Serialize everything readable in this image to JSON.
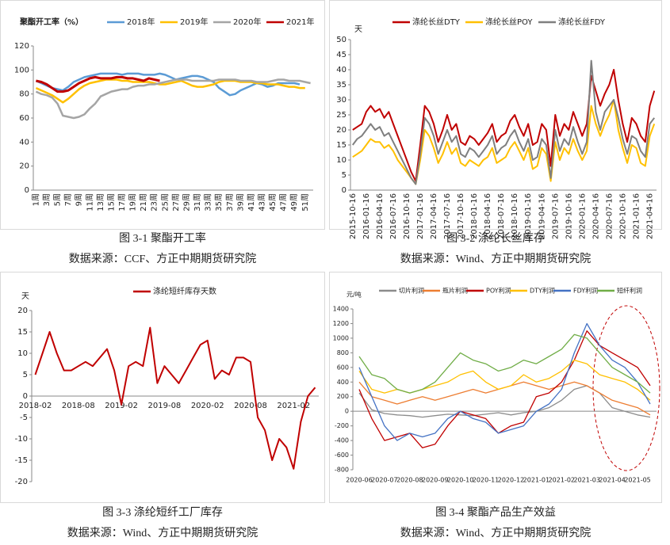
{
  "chart_data": [
    {
      "type": "line",
      "title": "聚酯开工率（%）",
      "caption": "图 3-1  聚酯开工率",
      "source": "数据来源：CCF、方正中期期货研究院",
      "categories": [
        "1周",
        null,
        "3周",
        null,
        "5周",
        null,
        "7周",
        null,
        "9周",
        null,
        "11周",
        null,
        "13周",
        null,
        "15周",
        null,
        "17周",
        null,
        "19周",
        null,
        "21周",
        null,
        "23周",
        null,
        "25周",
        null,
        "27周",
        null,
        "29周",
        null,
        "31周",
        null,
        "33周",
        null,
        "35周",
        null,
        "37周",
        null,
        "39周",
        null,
        "41周",
        null,
        "43周",
        null,
        "45周",
        null,
        "47周",
        null,
        "49周",
        null,
        "51周",
        null
      ],
      "series": [
        {
          "name": "2018年",
          "color": "#5b9bd5",
          "values": [
            91,
            89,
            87,
            85,
            84,
            83,
            86,
            90,
            92,
            94,
            95,
            96,
            97,
            97,
            97,
            97,
            96,
            97,
            97,
            97,
            96,
            96,
            96,
            97,
            96,
            94,
            92,
            93,
            94,
            95,
            95,
            94,
            92,
            90,
            85,
            82,
            79,
            80,
            83,
            85,
            87,
            89,
            88,
            86,
            87,
            89,
            89,
            89,
            89,
            88,
            null,
            null
          ]
        },
        {
          "name": "2019年",
          "color": "#ffc000",
          "values": [
            85,
            83,
            81,
            79,
            76,
            73,
            76,
            80,
            84,
            87,
            89,
            90,
            91,
            92,
            92,
            92,
            91,
            91,
            90,
            90,
            90,
            90,
            89,
            88,
            88,
            89,
            90,
            91,
            89,
            87,
            86,
            86,
            87,
            88,
            90,
            91,
            91,
            91,
            90,
            90,
            90,
            89,
            89,
            88,
            88,
            88,
            87,
            86,
            86,
            85,
            85,
            null
          ]
        },
        {
          "name": "2020年",
          "color": "#a5a5a5",
          "values": [
            82,
            80,
            79,
            77,
            72,
            62,
            61,
            60,
            61,
            63,
            68,
            72,
            78,
            80,
            82,
            83,
            84,
            84,
            86,
            87,
            87,
            88,
            88,
            89,
            90,
            91,
            92,
            92,
            92,
            91,
            91,
            91,
            91,
            91,
            92,
            92,
            92,
            92,
            91,
            91,
            91,
            90,
            90,
            90,
            91,
            92,
            92,
            91,
            91,
            91,
            90,
            89
          ]
        },
        {
          "name": "2021年",
          "color": "#c00000",
          "values": [
            91,
            90,
            88,
            85,
            82,
            82,
            83,
            86,
            89,
            91,
            93,
            94,
            93,
            93,
            93,
            94,
            94,
            93,
            93,
            92,
            91,
            93,
            92,
            91,
            null,
            null,
            null,
            null,
            null,
            null,
            null,
            null,
            null,
            null,
            null,
            null,
            null,
            null,
            null,
            null,
            null,
            null,
            null,
            null,
            null,
            null,
            null,
            null,
            null,
            null,
            null,
            null
          ]
        }
      ],
      "ylim": [
        0,
        120
      ],
      "yticks": [
        0,
        20,
        40,
        60,
        80,
        100,
        120
      ],
      "grid": false
    },
    {
      "type": "line",
      "y_label": "天",
      "caption": "图 3-2  涤纶长丝库存",
      "source": "数据来源：Wind、方正中期期货研究院",
      "categories": [
        "2015-10-16",
        null,
        null,
        "2016-01-16",
        null,
        null,
        "2016-04-16",
        null,
        null,
        "2016-07-16",
        null,
        null,
        "2016-10-16",
        null,
        null,
        "2017-01-16",
        null,
        null,
        "2017-04-16",
        null,
        null,
        "2017-07-16",
        null,
        null,
        "2017-10-16",
        null,
        null,
        "2018-01-16",
        null,
        null,
        "2018-04-16",
        null,
        null,
        "2018-07-16",
        null,
        null,
        "2018-10-16",
        null,
        null,
        "2019-01-16",
        null,
        null,
        "2019-04-16",
        null,
        null,
        "2019-07-16",
        null,
        null,
        "2019-10-16",
        null,
        null,
        "2020-01-16",
        null,
        null,
        "2020-04-16",
        null,
        null,
        "2020-07-16",
        null,
        null,
        "2020-10-16",
        null,
        null,
        "2021-01-16",
        null,
        null,
        "2021-04-16",
        null
      ],
      "series": [
        {
          "name": "涤纶长丝DTY",
          "color": "#c00000",
          "values": [
            20,
            21,
            22,
            26,
            28,
            26,
            27,
            24,
            26,
            22,
            18,
            14,
            10,
            6,
            3,
            15,
            28,
            26,
            22,
            16,
            20,
            25,
            20,
            22,
            16,
            15,
            18,
            17,
            15,
            17,
            19,
            22,
            16,
            18,
            19,
            23,
            25,
            21,
            18,
            22,
            15,
            16,
            22,
            20,
            8,
            25,
            18,
            22,
            20,
            26,
            22,
            18,
            22,
            38,
            33,
            28,
            32,
            35,
            40,
            30,
            22,
            16,
            24,
            22,
            18,
            16,
            28,
            33
          ]
        },
        {
          "name": "涤纶长丝POY",
          "color": "#ffc000",
          "values": [
            11,
            12,
            13,
            15,
            17,
            16,
            16,
            14,
            15,
            13,
            10,
            8,
            6,
            4,
            2,
            10,
            20,
            18,
            14,
            9,
            12,
            16,
            12,
            14,
            9,
            8,
            10,
            9,
            8,
            10,
            11,
            14,
            9,
            10,
            11,
            14,
            16,
            13,
            10,
            14,
            7,
            8,
            14,
            12,
            3,
            16,
            10,
            14,
            12,
            17,
            13,
            10,
            13,
            28,
            22,
            18,
            22,
            25,
            30,
            20,
            14,
            9,
            15,
            14,
            9,
            8,
            18,
            22
          ]
        },
        {
          "name": "涤纶长丝FDY",
          "color": "#7f7f7f",
          "values": [
            15,
            17,
            18,
            20,
            22,
            20,
            21,
            18,
            19,
            16,
            13,
            10,
            7,
            4,
            2,
            12,
            24,
            22,
            18,
            12,
            16,
            20,
            16,
            18,
            12,
            11,
            14,
            13,
            11,
            13,
            15,
            18,
            12,
            14,
            15,
            18,
            20,
            16,
            13,
            17,
            10,
            11,
            17,
            15,
            4,
            20,
            13,
            17,
            15,
            21,
            16,
            12,
            16,
            43,
            26,
            20,
            26,
            28,
            30,
            24,
            17,
            12,
            18,
            17,
            13,
            11,
            22,
            24
          ]
        }
      ],
      "ylim": [
        0,
        50
      ],
      "yticks": [
        0,
        5,
        10,
        15,
        20,
        25,
        30,
        35,
        40,
        45,
        50
      ],
      "grid": false
    },
    {
      "type": "line",
      "y_label": "天",
      "caption": "图 3-3  涤纶短纤工厂库存",
      "source": "数据来源：Wind、方正中期期货研究院",
      "categories": [
        "2018-02",
        null,
        null,
        null,
        null,
        null,
        "2018-08",
        null,
        null,
        null,
        null,
        null,
        "2019-02",
        null,
        null,
        null,
        null,
        null,
        "2019-08",
        null,
        null,
        null,
        null,
        null,
        "2020-02",
        null,
        null,
        null,
        null,
        null,
        "2020-08",
        null,
        null,
        null,
        null,
        null,
        "2021-02",
        null,
        null,
        null
      ],
      "series": [
        {
          "name": "涤纶短纤库存天数",
          "color": "#c00000",
          "values": [
            5,
            10,
            15,
            10,
            6,
            6,
            7,
            8,
            7,
            9,
            11,
            6,
            -2,
            7,
            8,
            7,
            16,
            3,
            7,
            5,
            3,
            6,
            9,
            12,
            13,
            4,
            6,
            5,
            9,
            9,
            8,
            -5,
            -8,
            -15,
            -10,
            -12,
            -17,
            -6,
            0,
            2
          ]
        }
      ],
      "ylim": [
        -20,
        20
      ],
      "yticks": [
        -20,
        -15,
        -10,
        -5,
        0,
        5,
        10,
        15,
        20
      ],
      "grid": false
    },
    {
      "type": "line",
      "y_label": "元/吨",
      "caption": "图 3-4  聚酯产品生产效益",
      "source": "数据来源：Wind、方正中期期货研究院",
      "categories": [
        "2020-06",
        null,
        "2020-07",
        null,
        "2020-08",
        null,
        "2020-09",
        null,
        "2020-10",
        null,
        "2020-11",
        null,
        "2020-12",
        null,
        "2021-01",
        null,
        "2021-02",
        null,
        "2021-03",
        null,
        "2021-04",
        null,
        "2021-05",
        null
      ],
      "series": [
        {
          "name": "切片利润",
          "color": "#8c8c8c",
          "values": [
            250,
            20,
            -30,
            -50,
            -60,
            -80,
            -60,
            -40,
            -50,
            -60,
            -40,
            -20,
            -50,
            -20,
            0,
            50,
            150,
            300,
            350,
            250,
            50,
            0,
            -50,
            -80
          ]
        },
        {
          "name": "瓶片利润",
          "color": "#ed7d31",
          "values": [
            400,
            200,
            150,
            100,
            150,
            200,
            150,
            200,
            250,
            300,
            250,
            300,
            350,
            400,
            350,
            300,
            350,
            400,
            350,
            250,
            150,
            100,
            50,
            -50
          ]
        },
        {
          "name": "POY利润",
          "color": "#c00000",
          "values": [
            300,
            -100,
            -400,
            -350,
            -300,
            -500,
            -450,
            -200,
            0,
            -50,
            -100,
            -300,
            -200,
            -150,
            200,
            250,
            400,
            700,
            1100,
            900,
            800,
            700,
            600,
            350
          ]
        },
        {
          "name": "DTY利润",
          "color": "#ffc000",
          "values": [
            550,
            300,
            250,
            300,
            250,
            300,
            350,
            400,
            500,
            550,
            400,
            300,
            350,
            500,
            400,
            450,
            550,
            700,
            650,
            500,
            450,
            400,
            300,
            150
          ]
        },
        {
          "name": "FDY利润",
          "color": "#4472c4",
          "values": [
            600,
            200,
            -200,
            -400,
            -300,
            -350,
            -300,
            -100,
            0,
            -100,
            -150,
            -300,
            -250,
            -200,
            0,
            100,
            300,
            800,
            1200,
            900,
            700,
            600,
            400,
            100
          ]
        },
        {
          "name": "短纤利润",
          "color": "#70ad47",
          "values": [
            750,
            500,
            450,
            300,
            250,
            300,
            400,
            600,
            800,
            700,
            650,
            550,
            600,
            700,
            650,
            750,
            850,
            1050,
            1000,
            800,
            600,
            500,
            400,
            250
          ]
        }
      ],
      "ylim": [
        -800,
        1400
      ],
      "yticks": [
        -800,
        -600,
        -400,
        -200,
        0,
        200,
        400,
        600,
        800,
        1000,
        1200,
        1400
      ],
      "grid": false
    }
  ]
}
